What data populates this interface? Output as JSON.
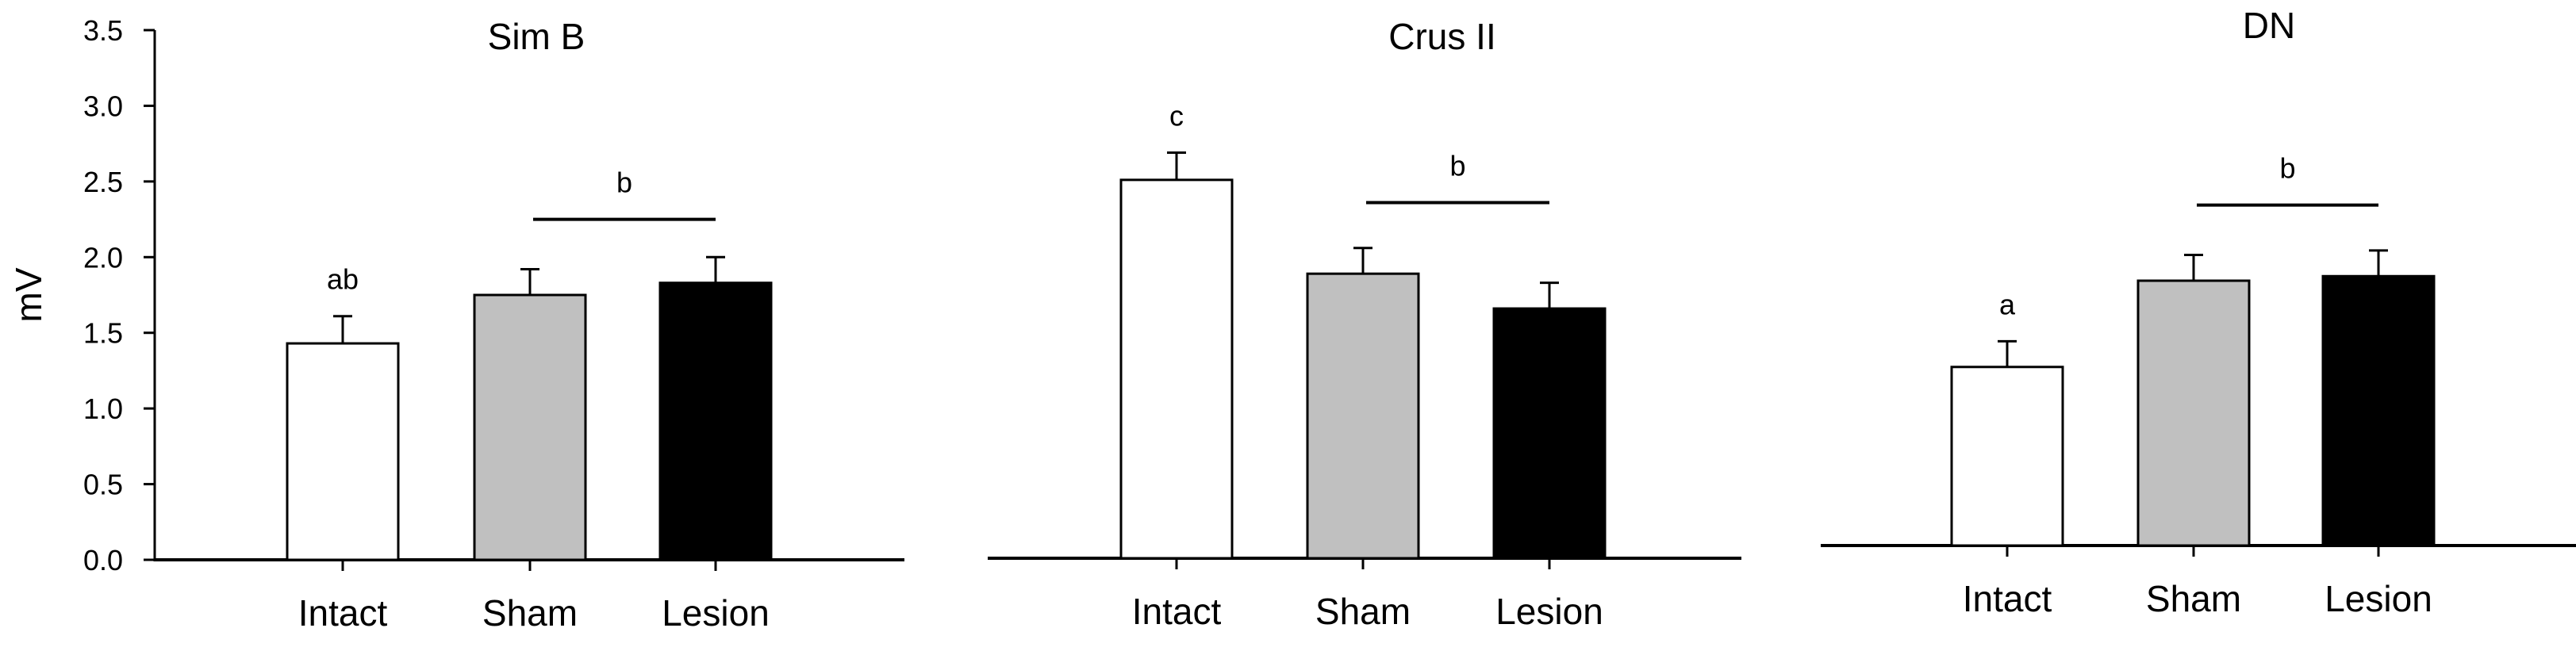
{
  "ylabel": "mV",
  "y_ticks": [
    "0.0",
    "0.5",
    "1.0",
    "1.5",
    "2.0",
    "2.5",
    "3.0",
    "3.5"
  ],
  "colors": {
    "Intact": "#ffffff",
    "Sham": "#c0c0c0",
    "Lesion": "#000000",
    "axis": "#000000"
  },
  "chart_data": [
    {
      "type": "bar",
      "title": "Sim B",
      "categories": [
        "Intact",
        "Sham",
        "Lesion"
      ],
      "values": [
        1.43,
        1.75,
        1.83
      ],
      "errors": [
        0.18,
        0.17,
        0.17
      ],
      "bar_labels": [
        "ab",
        "",
        ""
      ],
      "bracket": {
        "from": "Sham",
        "to": "Lesion",
        "label": "b",
        "y": 2.25
      },
      "ylabel": "mV",
      "ylim": [
        0,
        3.5
      ],
      "y_axis_visible": true
    },
    {
      "type": "bar",
      "title": "Crus II",
      "categories": [
        "Intact",
        "Sham",
        "Lesion"
      ],
      "values": [
        2.5,
        1.88,
        1.65
      ],
      "errors": [
        0.18,
        0.17,
        0.17
      ],
      "bar_labels": [
        "c",
        "",
        ""
      ],
      "bracket": {
        "from": "Sham",
        "to": "Lesion",
        "label": "b",
        "y": 2.35
      },
      "ylabel": "",
      "ylim": [
        0,
        3.5
      ],
      "y_axis_visible": false
    },
    {
      "type": "bar",
      "title": "DN",
      "categories": [
        "Intact",
        "Sham",
        "Lesion"
      ],
      "values": [
        1.18,
        1.75,
        1.78
      ],
      "errors": [
        0.17,
        0.17,
        0.17
      ],
      "bar_labels": [
        "a",
        "",
        ""
      ],
      "bracket": {
        "from": "Sham",
        "to": "Lesion",
        "label": "b",
        "y": 2.25
      },
      "ylabel": "",
      "ylim": [
        0,
        3.5
      ],
      "y_axis_visible": false
    }
  ]
}
